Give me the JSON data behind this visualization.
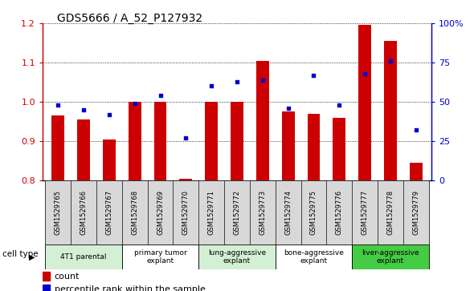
{
  "title": "GDS5666 / A_52_P127932",
  "samples": [
    "GSM1529765",
    "GSM1529766",
    "GSM1529767",
    "GSM1529768",
    "GSM1529769",
    "GSM1529770",
    "GSM1529771",
    "GSM1529772",
    "GSM1529773",
    "GSM1529774",
    "GSM1529775",
    "GSM1529776",
    "GSM1529777",
    "GSM1529778",
    "GSM1529779"
  ],
  "bar_values": [
    0.965,
    0.955,
    0.905,
    1.0,
    1.0,
    0.805,
    1.0,
    1.0,
    1.105,
    0.975,
    0.97,
    0.96,
    1.195,
    1.155,
    0.845
  ],
  "dot_values_pct": [
    48,
    45,
    42,
    49,
    54,
    27,
    60,
    63,
    64,
    46,
    67,
    48,
    68,
    76,
    32
  ],
  "ylim": [
    0.8,
    1.2
  ],
  "ylim_right": [
    0,
    100
  ],
  "bar_color": "#cc0000",
  "dot_color": "#0000cc",
  "yticks_left": [
    0.8,
    0.9,
    1.0,
    1.1,
    1.2
  ],
  "ytick_labels_left": [
    "0.8",
    "0.9",
    "1.0",
    "1.1",
    "1.2"
  ],
  "yticks_right": [
    0,
    25,
    50,
    75,
    100
  ],
  "ytick_labels_right": [
    "0",
    "25",
    "50",
    "75",
    "100%"
  ],
  "groups": [
    {
      "label": "4T1 parental",
      "start": 0,
      "end": 3,
      "color": "#d4f0d4"
    },
    {
      "label": "primary tumor\nexplant",
      "start": 3,
      "end": 6,
      "color": "#ffffff"
    },
    {
      "label": "lung-aggressive\nexplant",
      "start": 6,
      "end": 9,
      "color": "#d4f0d4"
    },
    {
      "label": "bone-aggressive\nexplant",
      "start": 9,
      "end": 12,
      "color": "#ffffff"
    },
    {
      "label": "liver-aggressive\nexplant",
      "start": 12,
      "end": 15,
      "color": "#44cc44"
    }
  ],
  "bar_width": 0.5,
  "legend_count_label": "count",
  "legend_dot_label": "percentile rank within the sample",
  "cell_type_label": "cell type"
}
